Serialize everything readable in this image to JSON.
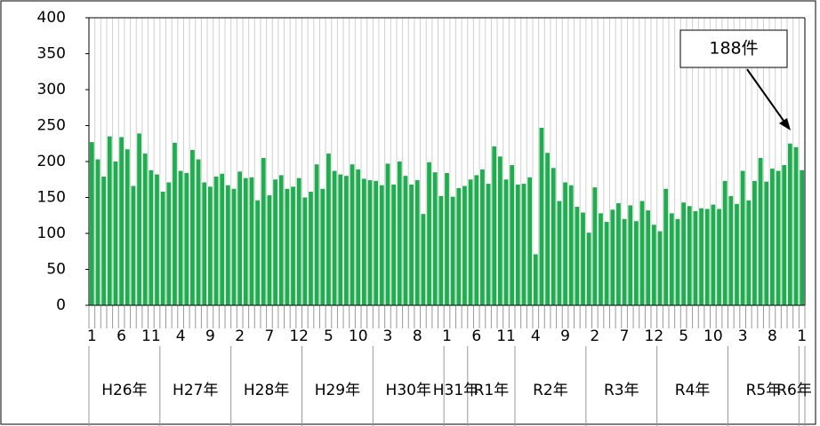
{
  "chart_data": {
    "type": "bar",
    "color": "#1fae4f",
    "categories": [
      "1",
      null,
      null,
      null,
      null,
      "6",
      null,
      null,
      null,
      null,
      "11",
      null,
      null,
      null,
      null,
      "4",
      null,
      null,
      null,
      null,
      "9",
      null,
      null,
      null,
      null,
      "2",
      null,
      null,
      null,
      null,
      "7",
      null,
      null,
      null,
      null,
      "12",
      null,
      null,
      null,
      null,
      "5",
      null,
      null,
      null,
      null,
      "10",
      null,
      null,
      null,
      null,
      "3",
      null,
      null,
      null,
      null,
      "8",
      null,
      null,
      null,
      null,
      "1",
      null,
      null,
      null,
      null,
      "6",
      null,
      null,
      null,
      null,
      "11",
      null,
      null,
      null,
      null,
      "4",
      null,
      null,
      null,
      null,
      "9",
      null,
      null,
      null,
      null,
      "2",
      null,
      null,
      null,
      null,
      "7",
      null,
      null,
      null,
      null,
      "12",
      null,
      null,
      null,
      null,
      "5",
      null,
      null,
      null,
      null,
      "10",
      null,
      null,
      null,
      null,
      "3",
      null,
      null,
      null,
      null,
      "8",
      null,
      null,
      null,
      null,
      "1"
    ],
    "values": [
      227,
      203,
      179,
      235,
      200,
      234,
      217,
      166,
      239,
      211,
      188,
      182,
      158,
      171,
      226,
      187,
      184,
      216,
      203,
      171,
      165,
      179,
      183,
      167,
      162,
      186,
      177,
      178,
      146,
      205,
      153,
      175,
      181,
      162,
      165,
      177,
      150,
      158,
      196,
      162,
      211,
      187,
      182,
      180,
      196,
      189,
      176,
      174,
      173,
      167,
      197,
      168,
      200,
      180,
      168,
      174,
      127,
      199,
      185,
      152,
      184,
      151,
      163,
      166,
      175,
      181,
      189,
      169,
      221,
      207,
      175,
      195,
      168,
      169,
      178,
      71,
      247,
      212,
      191,
      145,
      171,
      167,
      137,
      129,
      101,
      164,
      128,
      116,
      133,
      142,
      120,
      139,
      117,
      145,
      132,
      112,
      103,
      162,
      128,
      120,
      143,
      138,
      131,
      135,
      134,
      140,
      134,
      173,
      152,
      141,
      187,
      146,
      173,
      205,
      172,
      190,
      187,
      195,
      225,
      220,
      188
    ],
    "groups": [
      {
        "label": "H26年",
        "count": 12
      },
      {
        "label": "H27年",
        "count": 12
      },
      {
        "label": "H28年",
        "count": 12
      },
      {
        "label": "H29年",
        "count": 12
      },
      {
        "label": "H30年",
        "count": 12
      },
      {
        "label": "H31年",
        "count": 4
      },
      {
        "label": "R1年",
        "count": 8
      },
      {
        "label": "R2年",
        "count": 12
      },
      {
        "label": "R3年",
        "count": 12
      },
      {
        "label": "R4年",
        "count": 12
      },
      {
        "label": "R5年",
        "count": 12
      },
      {
        "label": "R6年",
        "count": 1
      }
    ],
    "ylim": [
      0,
      400
    ],
    "yticks": [
      0,
      50,
      100,
      150,
      200,
      250,
      300,
      350,
      400
    ],
    "grid": true,
    "annotation": "188件"
  }
}
